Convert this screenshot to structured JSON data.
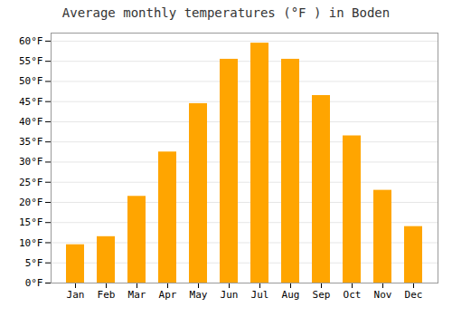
{
  "chart_data": {
    "type": "bar",
    "title": "Average monthly temperatures (°F ) in Boden",
    "categories": [
      "Jan",
      "Feb",
      "Mar",
      "Apr",
      "May",
      "Jun",
      "Jul",
      "Aug",
      "Sep",
      "Oct",
      "Nov",
      "Dec"
    ],
    "values": [
      9.5,
      11.5,
      21.5,
      32.5,
      44.5,
      55.5,
      59.5,
      55.5,
      46.5,
      36.5,
      23.0,
      14.0
    ],
    "color": "#FFA500",
    "ylim": [
      0,
      62
    ],
    "yticks": [
      {
        "value": 0,
        "label": "0°F"
      },
      {
        "value": 5,
        "label": "5°F"
      },
      {
        "value": 10,
        "label": "10°F"
      },
      {
        "value": 15,
        "label": "15°F"
      },
      {
        "value": 20,
        "label": "20°F"
      },
      {
        "value": 25,
        "label": "25°F"
      },
      {
        "value": 30,
        "label": "30°F"
      },
      {
        "value": 35,
        "label": "35°F"
      },
      {
        "value": 40,
        "label": "40°F"
      },
      {
        "value": 45,
        "label": "45°F"
      },
      {
        "value": 50,
        "label": "50°F"
      },
      {
        "value": 55,
        "label": "55°F"
      },
      {
        "value": 60,
        "label": "60°F"
      }
    ],
    "grid": true
  }
}
